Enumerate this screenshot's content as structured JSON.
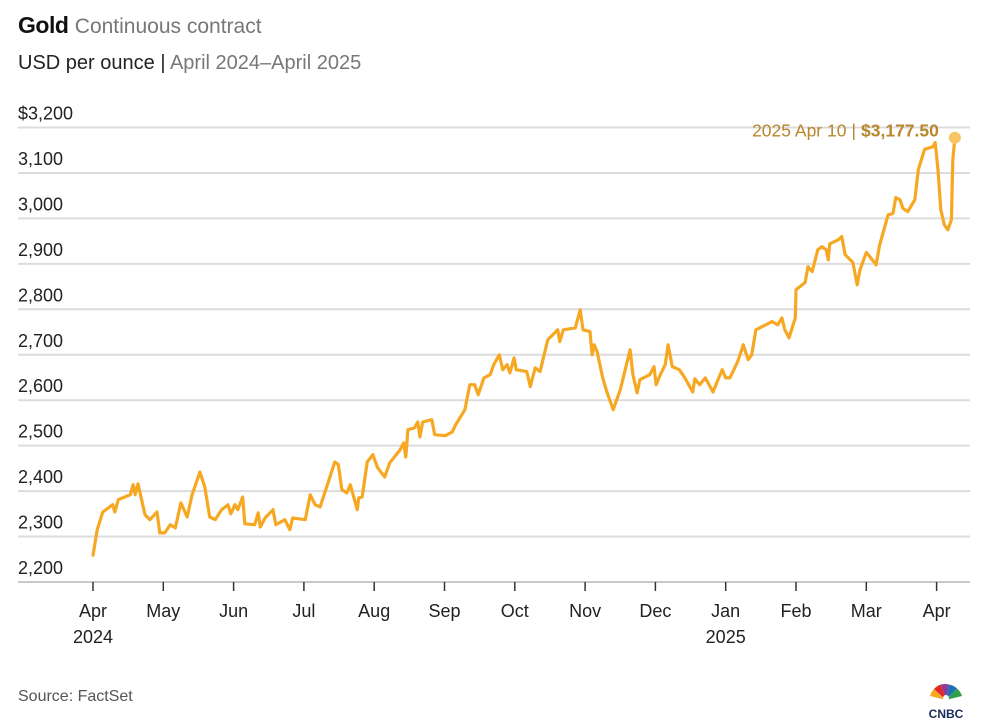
{
  "header": {
    "title": "Gold",
    "title_note": "Continuous contract",
    "unit": "USD per ounce",
    "separator": "|",
    "range": "April 2024–April 2025"
  },
  "footer": {
    "source": "Source: FactSet",
    "logo_text": "CNBC"
  },
  "colors": {
    "line": "#f7a823",
    "annotation": "#b8862b",
    "dot": "#f8c466",
    "grid": "#dcdcdc"
  },
  "chart_data": {
    "type": "line",
    "title": "Gold Continuous contract",
    "ylabel": "USD per ounce",
    "xlabel": "",
    "x_unit": "months since 2024-04-01",
    "ylim": [
      2200,
      3200
    ],
    "xlim": [
      0,
      12.26
    ],
    "grid": true,
    "y_ticks": [
      {
        "value": 3200,
        "label": "$3,200"
      },
      {
        "value": 3100,
        "label": "3,100"
      },
      {
        "value": 3000,
        "label": "3,000"
      },
      {
        "value": 2900,
        "label": "2,900"
      },
      {
        "value": 2800,
        "label": "2,800"
      },
      {
        "value": 2700,
        "label": "2,700"
      },
      {
        "value": 2600,
        "label": "2,600"
      },
      {
        "value": 2500,
        "label": "2,500"
      },
      {
        "value": 2400,
        "label": "2,400"
      },
      {
        "value": 2300,
        "label": "2,300"
      },
      {
        "value": 2200,
        "label": "2,200"
      }
    ],
    "x_ticks": [
      {
        "value": 0,
        "label": "Apr",
        "year": "2024"
      },
      {
        "value": 1,
        "label": "May"
      },
      {
        "value": 2,
        "label": "Jun"
      },
      {
        "value": 3,
        "label": "Jul"
      },
      {
        "value": 4,
        "label": "Aug"
      },
      {
        "value": 5,
        "label": "Sep"
      },
      {
        "value": 6,
        "label": "Oct"
      },
      {
        "value": 7,
        "label": "Nov"
      },
      {
        "value": 8,
        "label": "Dec"
      },
      {
        "value": 9,
        "label": "Jan",
        "year": "2025"
      },
      {
        "value": 10,
        "label": "Feb"
      },
      {
        "value": 11,
        "label": "Mar"
      },
      {
        "value": 12,
        "label": "Apr"
      }
    ],
    "annotation": {
      "date": "2025 Apr 10",
      "separator": "|",
      "value_label": "$3,177.50",
      "x": 12.26,
      "y": 3177.5
    },
    "series": [
      {
        "name": "Gold",
        "points": [
          [
            0.0,
            2259
          ],
          [
            0.06,
            2315
          ],
          [
            0.14,
            2354
          ],
          [
            0.28,
            2370
          ],
          [
            0.31,
            2354
          ],
          [
            0.36,
            2381
          ],
          [
            0.53,
            2392
          ],
          [
            0.57,
            2414
          ],
          [
            0.6,
            2392
          ],
          [
            0.64,
            2416
          ],
          [
            0.74,
            2348
          ],
          [
            0.81,
            2337
          ],
          [
            0.91,
            2354
          ],
          [
            0.95,
            2308
          ],
          [
            1.02,
            2308
          ],
          [
            1.1,
            2326
          ],
          [
            1.17,
            2319
          ],
          [
            1.25,
            2374
          ],
          [
            1.34,
            2343
          ],
          [
            1.41,
            2392
          ],
          [
            1.52,
            2442
          ],
          [
            1.59,
            2409
          ],
          [
            1.66,
            2343
          ],
          [
            1.74,
            2337
          ],
          [
            1.83,
            2359
          ],
          [
            1.92,
            2370
          ],
          [
            1.96,
            2350
          ],
          [
            2.02,
            2370
          ],
          [
            2.06,
            2359
          ],
          [
            2.13,
            2387
          ],
          [
            2.16,
            2328
          ],
          [
            2.3,
            2326
          ],
          [
            2.35,
            2352
          ],
          [
            2.38,
            2321
          ],
          [
            2.45,
            2341
          ],
          [
            2.56,
            2359
          ],
          [
            2.6,
            2326
          ],
          [
            2.73,
            2337
          ],
          [
            2.8,
            2315
          ],
          [
            2.84,
            2341
          ],
          [
            3.02,
            2337
          ],
          [
            3.09,
            2392
          ],
          [
            3.16,
            2370
          ],
          [
            3.23,
            2365
          ],
          [
            3.3,
            2398
          ],
          [
            3.44,
            2464
          ],
          [
            3.49,
            2458
          ],
          [
            3.54,
            2403
          ],
          [
            3.61,
            2396
          ],
          [
            3.66,
            2414
          ],
          [
            3.76,
            2359
          ],
          [
            3.78,
            2385
          ],
          [
            3.83,
            2387
          ],
          [
            3.9,
            2464
          ],
          [
            3.98,
            2480
          ],
          [
            4.05,
            2451
          ],
          [
            4.15,
            2431
          ],
          [
            4.22,
            2462
          ],
          [
            4.37,
            2491
          ],
          [
            4.42,
            2506
          ],
          [
            4.45,
            2475
          ],
          [
            4.48,
            2535
          ],
          [
            4.57,
            2539
          ],
          [
            4.62,
            2552
          ],
          [
            4.65,
            2519
          ],
          [
            4.69,
            2552
          ],
          [
            4.82,
            2557
          ],
          [
            4.86,
            2524
          ],
          [
            5.01,
            2522
          ],
          [
            5.11,
            2530
          ],
          [
            5.16,
            2546
          ],
          [
            5.29,
            2579
          ],
          [
            5.36,
            2634
          ],
          [
            5.43,
            2634
          ],
          [
            5.48,
            2612
          ],
          [
            5.56,
            2649
          ],
          [
            5.65,
            2656
          ],
          [
            5.7,
            2678
          ],
          [
            5.78,
            2700
          ],
          [
            5.83,
            2667
          ],
          [
            5.89,
            2678
          ],
          [
            5.93,
            2660
          ],
          [
            5.99,
            2693
          ],
          [
            6.02,
            2667
          ],
          [
            6.17,
            2663
          ],
          [
            6.22,
            2630
          ],
          [
            6.29,
            2671
          ],
          [
            6.36,
            2663
          ],
          [
            6.4,
            2689
          ],
          [
            6.47,
            2733
          ],
          [
            6.61,
            2755
          ],
          [
            6.64,
            2729
          ],
          [
            6.69,
            2755
          ],
          [
            6.86,
            2759
          ],
          [
            6.93,
            2799
          ],
          [
            6.97,
            2755
          ],
          [
            7.07,
            2751
          ],
          [
            7.1,
            2700
          ],
          [
            7.13,
            2722
          ],
          [
            7.17,
            2707
          ],
          [
            7.25,
            2649
          ],
          [
            7.31,
            2618
          ],
          [
            7.4,
            2579
          ],
          [
            7.5,
            2623
          ],
          [
            7.57,
            2667
          ],
          [
            7.64,
            2711
          ],
          [
            7.68,
            2656
          ],
          [
            7.74,
            2616
          ],
          [
            7.78,
            2645
          ],
          [
            7.92,
            2656
          ],
          [
            7.98,
            2674
          ],
          [
            8.01,
            2634
          ],
          [
            8.07,
            2656
          ],
          [
            8.14,
            2678
          ],
          [
            8.18,
            2722
          ],
          [
            8.24,
            2674
          ],
          [
            8.34,
            2667
          ],
          [
            8.42,
            2649
          ],
          [
            8.53,
            2618
          ],
          [
            8.56,
            2647
          ],
          [
            8.63,
            2634
          ],
          [
            8.71,
            2649
          ],
          [
            8.82,
            2618
          ],
          [
            8.89,
            2645
          ],
          [
            8.95,
            2667
          ],
          [
            9.0,
            2649
          ],
          [
            9.06,
            2649
          ],
          [
            9.17,
            2685
          ],
          [
            9.25,
            2722
          ],
          [
            9.32,
            2689
          ],
          [
            9.37,
            2700
          ],
          [
            9.43,
            2755
          ],
          [
            9.57,
            2766
          ],
          [
            9.66,
            2773
          ],
          [
            9.74,
            2766
          ],
          [
            9.8,
            2781
          ],
          [
            9.84,
            2755
          ],
          [
            9.9,
            2737
          ],
          [
            9.99,
            2781
          ],
          [
            10.0,
            2843
          ],
          [
            10.13,
            2859
          ],
          [
            10.17,
            2894
          ],
          [
            10.23,
            2883
          ],
          [
            10.31,
            2931
          ],
          [
            10.37,
            2938
          ],
          [
            10.43,
            2931
          ],
          [
            10.46,
            2909
          ],
          [
            10.48,
            2944
          ],
          [
            10.6,
            2953
          ],
          [
            10.65,
            2960
          ],
          [
            10.7,
            2920
          ],
          [
            10.81,
            2903
          ],
          [
            10.87,
            2854
          ],
          [
            10.91,
            2887
          ],
          [
            11.0,
            2925
          ],
          [
            11.05,
            2916
          ],
          [
            11.14,
            2898
          ],
          [
            11.19,
            2942
          ],
          [
            11.31,
            3008
          ],
          [
            11.38,
            3011
          ],
          [
            11.42,
            3046
          ],
          [
            11.48,
            3041
          ],
          [
            11.52,
            3022
          ],
          [
            11.59,
            3015
          ],
          [
            11.69,
            3041
          ],
          [
            11.74,
            3107
          ],
          [
            11.83,
            3152
          ],
          [
            11.95,
            3158
          ],
          [
            11.98,
            3167
          ],
          [
            12.02,
            3107
          ],
          [
            12.06,
            3019
          ],
          [
            12.11,
            2986
          ],
          [
            12.16,
            2975
          ],
          [
            12.21,
            2997
          ],
          [
            12.23,
            3129
          ],
          [
            12.26,
            3177.5
          ]
        ]
      }
    ]
  }
}
